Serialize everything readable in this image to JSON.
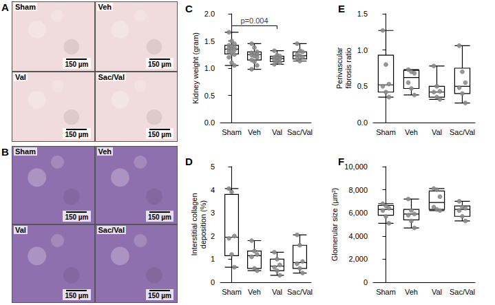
{
  "image_panels": [
    {
      "letter": "A",
      "tiles": [
        "Sham",
        "Veh",
        "Val",
        "Sac/Val"
      ],
      "scale_bar": "150 µm",
      "color": "#f0dcdc"
    },
    {
      "letter": "B",
      "tiles": [
        "Sham",
        "Veh",
        "Val",
        "Sac/Val"
      ],
      "scale_bar": "150 µm",
      "color": "#8f70ae"
    }
  ],
  "chart_data": [
    {
      "type": "boxplot",
      "letter": "C",
      "y_label": "Kidney weight (gram)",
      "categories": [
        "Sham",
        "Veh",
        "Val",
        "Sac/Val"
      ],
      "ylim": [
        0,
        2
      ],
      "yticks": [
        {
          "value": 0,
          "label": "0.0"
        },
        {
          "value": 0.5,
          "label": "0.5"
        },
        {
          "value": 1,
          "label": "1.0"
        },
        {
          "value": 1.5,
          "label": "1.5"
        },
        {
          "value": 2,
          "label": "2.0"
        }
      ],
      "grid": false,
      "color": "#8c8c8c",
      "boxes": [
        [
          1.05,
          1.26,
          1.35,
          1.42,
          1.66
        ],
        [
          0.98,
          1.15,
          1.25,
          1.3,
          1.45
        ],
        [
          1.07,
          1.12,
          1.18,
          1.22,
          1.32
        ],
        [
          1.13,
          1.17,
          1.23,
          1.3,
          1.45
        ]
      ],
      "points": [
        [
          1.66,
          1.5,
          1.45,
          1.42,
          1.4,
          1.38,
          1.36,
          1.35,
          1.33,
          1.3,
          1.27,
          1.25,
          1.2,
          1.1,
          1.05
        ],
        [
          1.45,
          1.38,
          1.3,
          1.28,
          1.27,
          1.25,
          1.24,
          1.22,
          1.2,
          1.15,
          1.12,
          1.05,
          0.98
        ],
        [
          1.32,
          1.24,
          1.22,
          1.2,
          1.18,
          1.17,
          1.15,
          1.12,
          1.1,
          1.07
        ],
        [
          1.45,
          1.32,
          1.3,
          1.25,
          1.23,
          1.2,
          1.18,
          1.13
        ]
      ],
      "annotations": [
        {
          "text": "p=0.004",
          "from": "Sham",
          "to": "Val",
          "y": 1.78
        }
      ]
    },
    {
      "type": "boxplot",
      "letter": "D",
      "y_label": "Interstitial collagen deposition (%)",
      "categories": [
        "Sham",
        "Veh",
        "Val",
        "Sac/Val"
      ],
      "ylim": [
        0,
        5
      ],
      "yticks": [
        0,
        1,
        2,
        3,
        4,
        5
      ],
      "grid": false,
      "color": "#8c8c8c",
      "boxes": [
        [
          0.65,
          1.15,
          1.95,
          3.8,
          4.05
        ],
        [
          0.5,
          0.6,
          1.15,
          1.35,
          1.8
        ],
        [
          0.3,
          0.5,
          0.7,
          1.0,
          1.3
        ],
        [
          0.4,
          0.6,
          0.85,
          1.6,
          2.05
        ]
      ],
      "points": [
        [
          4.05,
          3.9,
          2.0,
          1.9,
          1.2,
          0.65
        ],
        [
          1.8,
          1.35,
          1.2,
          1.1,
          0.6,
          0.5
        ],
        [
          1.3,
          1.0,
          0.75,
          0.65,
          0.5,
          0.3
        ],
        [
          2.05,
          1.6,
          0.9,
          0.8,
          0.6,
          0.4
        ]
      ]
    },
    {
      "type": "boxplot",
      "letter": "E",
      "y_label": "Perivascular fibrosis ratio",
      "categories": [
        "Sham",
        "Veh",
        "Val",
        "Sac/Val"
      ],
      "ylim": [
        0,
        1.5
      ],
      "yticks": [
        {
          "value": 0,
          "label": "0.0"
        },
        {
          "value": 0.5,
          "label": "0.5"
        },
        {
          "value": 1,
          "label": "1.0"
        },
        {
          "value": 1.5,
          "label": "1.5"
        }
      ],
      "grid": false,
      "color": "#8c8c8c",
      "boxes": [
        [
          0.35,
          0.42,
          0.52,
          0.93,
          1.27
        ],
        [
          0.38,
          0.47,
          0.62,
          0.72,
          0.73
        ],
        [
          0.32,
          0.35,
          0.42,
          0.5,
          0.78
        ],
        [
          0.27,
          0.4,
          0.5,
          0.75,
          1.06
        ]
      ],
      "points": [
        [
          1.27,
          0.8,
          0.53,
          0.5,
          0.42,
          0.35
        ],
        [
          0.73,
          0.7,
          0.68,
          0.55,
          0.47,
          0.38
        ],
        [
          0.78,
          0.5,
          0.43,
          0.42,
          0.35,
          0.32
        ],
        [
          1.06,
          0.7,
          0.55,
          0.48,
          0.4,
          0.27
        ]
      ]
    },
    {
      "type": "boxplot",
      "letter": "F",
      "y_label": "Glomerular size (µm²)",
      "categories": [
        "Sham",
        "Veh",
        "Val",
        "Sac/Val"
      ],
      "ylim": [
        0,
        10000
      ],
      "yticks": [
        0,
        {
          "value": 2000,
          "label": "2,000"
        },
        {
          "value": 4000,
          "label": "4,000"
        },
        {
          "value": 6000,
          "label": "6,000"
        },
        {
          "value": 8000,
          "label": "8,000"
        },
        {
          "value": 10000,
          "label": "10,000"
        }
      ],
      "grid": false,
      "color": "#8c8c8c",
      "boxes": [
        [
          5100,
          5800,
          6300,
          6650,
          6800
        ],
        [
          4700,
          5400,
          5900,
          6300,
          7200
        ],
        [
          6200,
          6300,
          6900,
          7900,
          8100
        ],
        [
          5300,
          5700,
          6300,
          6600,
          7000
        ]
      ],
      "points": [
        [
          6800,
          6600,
          6400,
          6200,
          5700,
          5100
        ],
        [
          7200,
          6200,
          5900,
          5800,
          5300,
          4700
        ],
        [
          8100,
          8000,
          7400,
          6500,
          6300,
          6200
        ],
        [
          7000,
          6500,
          6400,
          6200,
          5700,
          5300
        ]
      ]
    }
  ]
}
